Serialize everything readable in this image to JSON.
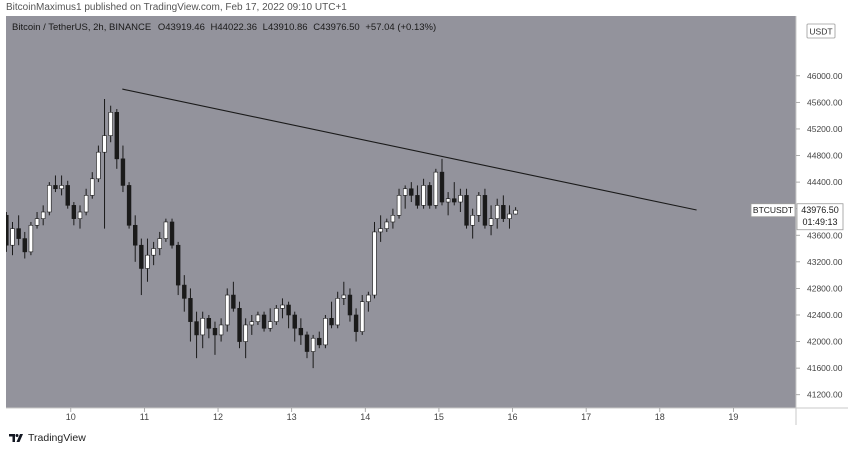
{
  "publisher": {
    "text": "BitcoinMaximus1 published on TradingView.com, Feb 17, 2022 09:10 UTC+1"
  },
  "legend": {
    "symbol": "Bitcoin / TetherUS, 2h, BINANCE",
    "o_label": "O",
    "o_value": "43919.46",
    "h_label": "H",
    "h_value": "44022.36",
    "l_label": "L",
    "l_value": "43910.86",
    "c_label": "C",
    "c_value": "43976.50",
    "change": "+57.04 (+0.13%)"
  },
  "axis": {
    "currency": "USDT",
    "price_tag": "BTCUSDT",
    "price_value": "43976.50",
    "countdown": "01:49:13"
  },
  "footer": {
    "brand": "TradingView",
    "icon": "tradingview-logo-icon"
  },
  "colors": {
    "background": "#93939c",
    "up_candle": "#ffffff",
    "down_candle": "#1a1a1a",
    "wick": "#1a1a1a",
    "trendline": "#1a1a1a"
  },
  "chart_data": {
    "type": "candlestick",
    "title": "Bitcoin / TetherUS, 2h, BINANCE",
    "interval": "2h",
    "ylim": [
      41000,
      46900
    ],
    "y_ticks": [
      41200,
      41600,
      42000,
      42400,
      42800,
      43200,
      43600,
      44000,
      44400,
      44800,
      45200,
      45600,
      46000
    ],
    "x_ticks": [
      "10",
      "11",
      "12",
      "13",
      "14",
      "15",
      "16",
      "17",
      "18",
      "19"
    ],
    "x_tick_positions": [
      10,
      11,
      12,
      13,
      14,
      15,
      16,
      17,
      18,
      19
    ],
    "xlim": [
      9.12,
      19.85
    ],
    "grid": false,
    "candles_per_day": 12,
    "first_candle_x": 9.125,
    "candles": [
      [
        43900,
        43950,
        43350,
        43450
      ],
      [
        43450,
        43800,
        43300,
        43700
      ],
      [
        43700,
        43900,
        43450,
        43550
      ],
      [
        43550,
        43650,
        43250,
        43350
      ],
      [
        43350,
        43800,
        43300,
        43750
      ],
      [
        43750,
        43950,
        43700,
        43850
      ],
      [
        43850,
        44050,
        43750,
        43950
      ],
      [
        43950,
        44400,
        43900,
        44350
      ],
      [
        44350,
        44500,
        44250,
        44300
      ],
      [
        44300,
        44500,
        44200,
        44350
      ],
      [
        44350,
        44420,
        44000,
        44050
      ],
      [
        44050,
        44100,
        43750,
        43850
      ],
      [
        43850,
        44050,
        43700,
        43950
      ],
      [
        43950,
        44300,
        43900,
        44200
      ],
      [
        44200,
        44550,
        44150,
        44450
      ],
      [
        44450,
        44950,
        44400,
        44850
      ],
      [
        44850,
        45650,
        43700,
        45100
      ],
      [
        45100,
        45550,
        45000,
        45450
      ],
      [
        45450,
        45500,
        44600,
        44750
      ],
      [
        44750,
        44950,
        44250,
        44350
      ],
      [
        44350,
        44400,
        43700,
        43750
      ],
      [
        43750,
        43900,
        43200,
        43450
      ],
      [
        43450,
        43550,
        42700,
        43100
      ],
      [
        43100,
        43550,
        42900,
        43300
      ],
      [
        43300,
        43500,
        43150,
        43400
      ],
      [
        43400,
        43650,
        43300,
        43550
      ],
      [
        43550,
        43850,
        43500,
        43800
      ],
      [
        43800,
        43850,
        43400,
        43450
      ],
      [
        43450,
        43500,
        42700,
        42850
      ],
      [
        42850,
        43000,
        42450,
        42650
      ],
      [
        42650,
        42800,
        42000,
        42300
      ],
      [
        42300,
        42450,
        41750,
        42100
      ],
      [
        42100,
        42450,
        41900,
        42350
      ],
      [
        42350,
        42400,
        42050,
        42200
      ],
      [
        42200,
        42300,
        41800,
        42100
      ],
      [
        42100,
        42350,
        42000,
        42250
      ],
      [
        42250,
        42800,
        42150,
        42700
      ],
      [
        42700,
        42900,
        42450,
        42500
      ],
      [
        42500,
        42600,
        41900,
        42000
      ],
      [
        42000,
        42350,
        41750,
        42250
      ],
      [
        42250,
        42400,
        42100,
        42300
      ],
      [
        42300,
        42450,
        42250,
        42400
      ],
      [
        42400,
        42450,
        42150,
        42200
      ],
      [
        42200,
        42500,
        42150,
        42300
      ],
      [
        42300,
        42550,
        42250,
        42500
      ],
      [
        42500,
        42650,
        42350,
        42550
      ],
      [
        42550,
        42600,
        42200,
        42400
      ],
      [
        42400,
        42450,
        42000,
        42200
      ],
      [
        42200,
        42350,
        41950,
        42100
      ],
      [
        42100,
        42150,
        41750,
        41850
      ],
      [
        41850,
        42100,
        41600,
        42050
      ],
      [
        42050,
        42150,
        41900,
        41950
      ],
      [
        41950,
        42400,
        41900,
        42350
      ],
      [
        42350,
        42600,
        42200,
        42250
      ],
      [
        42250,
        42750,
        42200,
        42650
      ],
      [
        42650,
        42900,
        42550,
        42700
      ],
      [
        42700,
        42800,
        42300,
        42400
      ],
      [
        42400,
        42500,
        42000,
        42150
      ],
      [
        42150,
        42700,
        42100,
        42600
      ],
      [
        42600,
        42750,
        42450,
        42700
      ],
      [
        42700,
        43800,
        42650,
        43650
      ],
      [
        43650,
        43900,
        43500,
        43700
      ],
      [
        43700,
        43850,
        43650,
        43800
      ],
      [
        43800,
        44000,
        43700,
        43900
      ],
      [
        43900,
        44300,
        43850,
        44200
      ],
      [
        44200,
        44350,
        44000,
        44300
      ],
      [
        44300,
        44400,
        44100,
        44200
      ],
      [
        44200,
        44350,
        44000,
        44050
      ],
      [
        44050,
        44450,
        44000,
        44350
      ],
      [
        44350,
        44400,
        44000,
        44050
      ],
      [
        44050,
        44600,
        44000,
        44550
      ],
      [
        44550,
        44750,
        44050,
        44100
      ],
      [
        44100,
        44250,
        43900,
        44150
      ],
      [
        44150,
        44400,
        44050,
        44100
      ],
      [
        44100,
        44300,
        43950,
        44200
      ],
      [
        44200,
        44300,
        43700,
        43750
      ],
      [
        43750,
        44000,
        43550,
        43900
      ],
      [
        43900,
        44250,
        43800,
        44200
      ],
      [
        44200,
        44300,
        43700,
        43750
      ],
      [
        43750,
        44050,
        43600,
        43850
      ],
      [
        43850,
        44150,
        43700,
        44050
      ],
      [
        44050,
        44200,
        43800,
        43850
      ],
      [
        43850,
        44050,
        43700,
        43919.46
      ],
      [
        43919.46,
        44022.36,
        43910.86,
        43976.5
      ]
    ],
    "trendline": {
      "x1": 10.7,
      "y1": 45800,
      "x2": 18.5,
      "y2": 43980
    },
    "last_price": 43976.5
  }
}
